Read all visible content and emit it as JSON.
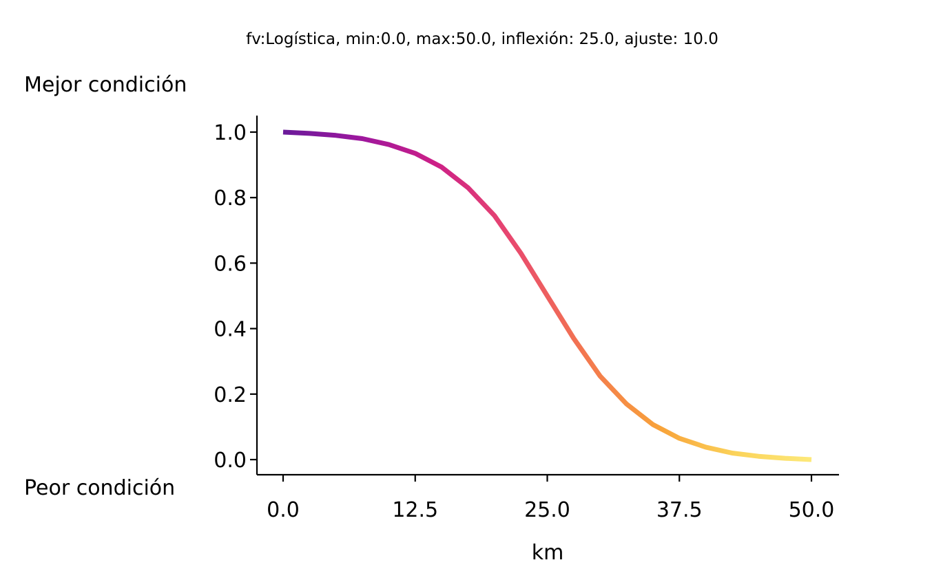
{
  "chart_data": {
    "type": "line",
    "title": "fv:Logística, min:0.0, max:50.0, inflexión: 25.0, ajuste: 10.0",
    "xlabel": "km",
    "ylabel": "",
    "y_top_label": "Mejor condición",
    "y_bottom_label": "Peor condición",
    "xlim": [
      0.0,
      50.0
    ],
    "ylim": [
      0.0,
      1.0
    ],
    "x_ticks": [
      0.0,
      12.5,
      25.0,
      37.5,
      50.0
    ],
    "x_tick_labels": [
      "0.0",
      "12.5",
      "25.0",
      "37.5",
      "50.0"
    ],
    "y_ticks": [
      0.0,
      0.2,
      0.4,
      0.6,
      0.8,
      1.0
    ],
    "y_tick_labels": [
      "0.0",
      "0.2",
      "0.4",
      "0.6",
      "0.8",
      "1.0"
    ],
    "grid": false,
    "colormap": "plasma (purple → magenta → orange → yellow)",
    "gradient_colors": [
      "#6a1b9a",
      "#9c179e",
      "#cc1f87",
      "#e8476f",
      "#f3774f",
      "#f8a33a",
      "#fbd35a",
      "#fde97a"
    ],
    "series": [
      {
        "x": [
          0,
          2.5,
          5,
          7.5,
          10,
          12.5,
          15,
          17.5,
          20,
          22.5,
          25,
          27.5,
          30,
          32.5,
          35,
          37.5,
          40,
          42.5,
          45,
          47.5,
          50
        ],
        "values": [
          1.0,
          0.996,
          0.99,
          0.98,
          0.962,
          0.935,
          0.893,
          0.83,
          0.745,
          0.63,
          0.5,
          0.37,
          0.255,
          0.17,
          0.107,
          0.065,
          0.038,
          0.02,
          0.01,
          0.004,
          0.0
        ]
      }
    ]
  }
}
